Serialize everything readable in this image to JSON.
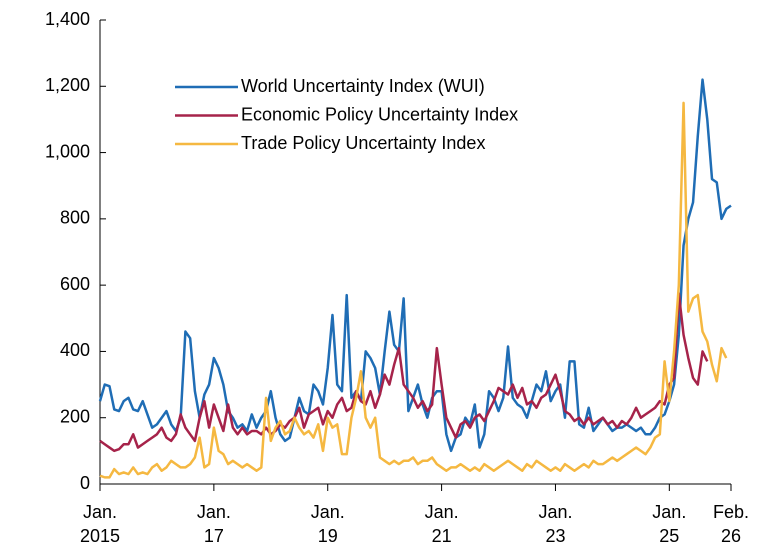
{
  "chart_data": {
    "type": "line",
    "x": [
      "2015-01",
      "2015-02",
      "2015-03",
      "2015-04",
      "2015-05",
      "2015-06",
      "2015-07",
      "2015-08",
      "2015-09",
      "2015-10",
      "2015-11",
      "2015-12",
      "2016-01",
      "2016-02",
      "2016-03",
      "2016-04",
      "2016-05",
      "2016-06",
      "2016-07",
      "2016-08",
      "2016-09",
      "2016-10",
      "2016-11",
      "2016-12",
      "2017-01",
      "2017-02",
      "2017-03",
      "2017-04",
      "2017-05",
      "2017-06",
      "2017-07",
      "2017-08",
      "2017-09",
      "2017-10",
      "2017-11",
      "2017-12",
      "2018-01",
      "2018-02",
      "2018-03",
      "2018-04",
      "2018-05",
      "2018-06",
      "2018-07",
      "2018-08",
      "2018-09",
      "2018-10",
      "2018-11",
      "2018-12",
      "2019-01",
      "2019-02",
      "2019-03",
      "2019-04",
      "2019-05",
      "2019-06",
      "2019-07",
      "2019-08",
      "2019-09",
      "2019-10",
      "2019-11",
      "2019-12",
      "2020-01",
      "2020-02",
      "2020-03",
      "2020-04",
      "2020-05",
      "2020-06",
      "2020-07",
      "2020-08",
      "2020-09",
      "2020-10",
      "2020-11",
      "2020-12",
      "2021-01",
      "2021-02",
      "2021-03",
      "2021-04",
      "2021-05",
      "2021-06",
      "2021-07",
      "2021-08",
      "2021-09",
      "2021-10",
      "2021-11",
      "2021-12",
      "2022-01",
      "2022-02",
      "2022-03",
      "2022-04",
      "2022-05",
      "2022-06",
      "2022-07",
      "2022-08",
      "2022-09",
      "2022-10",
      "2022-11",
      "2022-12",
      "2023-01",
      "2023-02",
      "2023-03",
      "2023-04",
      "2023-05",
      "2023-06",
      "2023-07",
      "2023-08",
      "2023-09",
      "2023-10",
      "2023-11",
      "2023-12",
      "2024-01",
      "2024-02",
      "2024-03",
      "2024-04",
      "2024-05",
      "2024-06",
      "2024-07",
      "2024-08",
      "2024-09",
      "2024-10",
      "2024-11",
      "2024-12",
      "2025-01",
      "2025-02",
      "2025-03",
      "2025-04",
      "2025-05",
      "2025-06",
      "2025-07",
      "2025-08",
      "2025-09",
      "2025-10",
      "2025-11",
      "2025-12",
      "2026-01",
      "2026-02"
    ],
    "series": [
      {
        "name": "World Uncertainty Index (WUI)",
        "color": "#1f6db5",
        "values": [
          250,
          300,
          295,
          225,
          220,
          250,
          260,
          225,
          220,
          250,
          210,
          170,
          180,
          200,
          220,
          180,
          160,
          200,
          460,
          440,
          280,
          200,
          270,
          300,
          380,
          350,
          300,
          220,
          200,
          170,
          180,
          160,
          210,
          170,
          200,
          220,
          280,
          200,
          150,
          130,
          140,
          200,
          260,
          220,
          210,
          300,
          280,
          240,
          350,
          510,
          300,
          280,
          570,
          260,
          280,
          250,
          400,
          380,
          350,
          270,
          400,
          520,
          420,
          400,
          560,
          220,
          260,
          300,
          240,
          200,
          260,
          280,
          280,
          150,
          100,
          140,
          150,
          200,
          180,
          240,
          110,
          150,
          280,
          260,
          220,
          260,
          415,
          260,
          240,
          230,
          200,
          250,
          300,
          280,
          340,
          250,
          280,
          300,
          200,
          370,
          370,
          180,
          170,
          230,
          160,
          180,
          200,
          180,
          160,
          170,
          170,
          180,
          170,
          160,
          170,
          150,
          150,
          170,
          200,
          210,
          250,
          300,
          450,
          720,
          800,
          850,
          1050,
          1220,
          1100,
          920,
          910,
          800,
          830,
          840
        ]
      },
      {
        "name": "Economic Policy Uncertainty Index",
        "color": "#a6234a",
        "values": [
          130,
          120,
          110,
          100,
          105,
          120,
          120,
          150,
          110,
          120,
          130,
          140,
          150,
          170,
          140,
          130,
          150,
          210,
          170,
          150,
          130,
          200,
          250,
          170,
          240,
          200,
          160,
          240,
          170,
          150,
          170,
          150,
          160,
          160,
          150,
          170,
          150,
          160,
          180,
          170,
          190,
          200,
          230,
          170,
          210,
          220,
          230,
          180,
          220,
          200,
          240,
          260,
          220,
          230,
          280,
          250,
          240,
          280,
          230,
          270,
          330,
          300,
          360,
          410,
          300,
          280,
          260,
          230,
          250,
          220,
          240,
          410,
          300,
          200,
          170,
          140,
          180,
          190,
          170,
          200,
          210,
          190,
          220,
          250,
          290,
          280,
          270,
          300,
          260,
          290,
          240,
          250,
          230,
          260,
          270,
          300,
          330,
          280,
          220,
          210,
          190,
          200,
          180,
          200,
          180,
          190,
          200,
          180,
          190,
          170,
          190,
          180,
          200,
          230,
          200,
          210,
          220,
          230,
          250,
          240,
          300,
          320,
          575,
          450,
          380,
          320,
          300,
          400,
          370,
          null,
          null,
          null,
          null,
          null
        ]
      },
      {
        "name": "Trade Policy Uncertainty Index",
        "color": "#f5b841",
        "values": [
          25,
          20,
          20,
          45,
          30,
          35,
          30,
          50,
          30,
          35,
          30,
          50,
          60,
          40,
          50,
          70,
          60,
          50,
          50,
          60,
          80,
          140,
          50,
          60,
          170,
          100,
          90,
          60,
          70,
          60,
          50,
          60,
          50,
          40,
          50,
          260,
          130,
          170,
          190,
          150,
          160,
          200,
          170,
          150,
          160,
          140,
          180,
          100,
          200,
          170,
          180,
          90,
          90,
          200,
          260,
          340,
          200,
          170,
          200,
          80,
          70,
          60,
          70,
          60,
          70,
          70,
          80,
          60,
          70,
          70,
          80,
          60,
          50,
          40,
          50,
          50,
          60,
          50,
          40,
          50,
          40,
          60,
          50,
          40,
          50,
          60,
          70,
          60,
          50,
          40,
          60,
          50,
          70,
          60,
          50,
          40,
          50,
          40,
          60,
          50,
          40,
          50,
          60,
          50,
          70,
          60,
          60,
          70,
          80,
          70,
          80,
          90,
          100,
          110,
          100,
          90,
          110,
          140,
          150,
          370,
          250,
          400,
          600,
          1150,
          520,
          560,
          570,
          460,
          430,
          360,
          310,
          410,
          380,
          null
        ]
      }
    ],
    "xlim": [
      "2015-01",
      "2026-02"
    ],
    "xticks": [
      {
        "value": "2015-01",
        "label": [
          "Jan.",
          "2015"
        ]
      },
      {
        "value": "2017-01",
        "label": [
          "Jan.",
          "17"
        ]
      },
      {
        "value": "2019-01",
        "label": [
          "Jan.",
          "19"
        ]
      },
      {
        "value": "2021-01",
        "label": [
          "Jan.",
          "21"
        ]
      },
      {
        "value": "2023-01",
        "label": [
          "Jan.",
          "23"
        ]
      },
      {
        "value": "2025-01",
        "label": [
          "Jan.",
          "25"
        ]
      },
      {
        "value": "2026-02",
        "label": [
          "Feb.",
          "26"
        ]
      }
    ],
    "ylim": [
      0,
      1400
    ],
    "yticks": [
      0,
      200,
      400,
      600,
      800,
      {
        "value": 1000,
        "label": "1,000"
      },
      {
        "value": 1200,
        "label": "1,200"
      },
      {
        "value": 1400,
        "label": "1,400"
      }
    ],
    "legend": "upper left"
  }
}
